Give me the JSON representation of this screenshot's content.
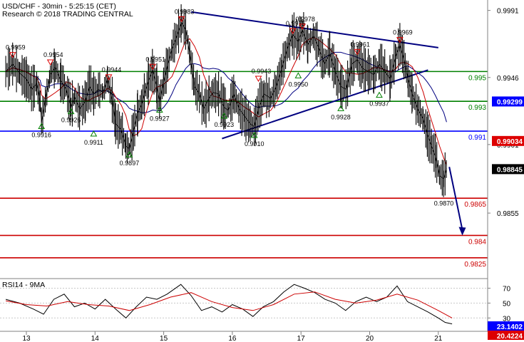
{
  "header": {
    "title": "USD/CHF - 30min - 5:25:15 (CET)",
    "subtitle": "Research © 2018 TRADING CENTRAL"
  },
  "chart_data": [
    {
      "type": "line",
      "name": "price-panel",
      "ylim": [
        0.9812,
        0.9998
      ],
      "y_ticks": [
        {
          "value": 0.9991,
          "label": "0.9991"
        },
        {
          "value": 0.9946,
          "label": "0.9946"
        },
        {
          "value": 0.9901,
          "label": "0.9901"
        },
        {
          "value": 0.9855,
          "label": "0.9855"
        }
      ],
      "x_ticks": [
        {
          "x": 0.0,
          "label": "13"
        },
        {
          "x": 1.0,
          "label": "14"
        },
        {
          "x": 2.0,
          "label": "15"
        },
        {
          "x": 3.0,
          "label": "16"
        },
        {
          "x": 4.0,
          "label": "17"
        },
        {
          "x": 5.0,
          "label": "20"
        },
        {
          "x": 6.0,
          "label": "21"
        }
      ],
      "price_path": [
        [
          -0.3,
          0.995
        ],
        [
          -0.2,
          0.9955
        ],
        [
          -0.1,
          0.9949
        ],
        [
          0.0,
          0.9945
        ],
        [
          0.08,
          0.9938
        ],
        [
          0.15,
          0.9942
        ],
        [
          0.2,
          0.993
        ],
        [
          0.22,
          0.9916
        ],
        [
          0.28,
          0.9932
        ],
        [
          0.35,
          0.9948
        ],
        [
          0.42,
          0.9953
        ],
        [
          0.5,
          0.9944
        ],
        [
          0.58,
          0.9938
        ],
        [
          0.65,
          0.9926
        ],
        [
          0.7,
          0.9933
        ],
        [
          0.78,
          0.9925
        ],
        [
          0.86,
          0.993
        ],
        [
          0.92,
          0.994
        ],
        [
          0.98,
          0.9935
        ],
        [
          1.05,
          0.9938
        ],
        [
          1.12,
          0.9936
        ],
        [
          1.18,
          0.9945
        ],
        [
          1.25,
          0.9931
        ],
        [
          1.3,
          0.9915
        ],
        [
          1.38,
          0.9911
        ],
        [
          1.45,
          0.99
        ],
        [
          1.5,
          0.9898
        ],
        [
          1.56,
          0.991
        ],
        [
          1.62,
          0.9922
        ],
        [
          1.68,
          0.9928
        ],
        [
          1.72,
          0.9935
        ],
        [
          1.78,
          0.9944
        ],
        [
          1.84,
          0.9951
        ],
        [
          1.9,
          0.994
        ],
        [
          1.94,
          0.993
        ],
        [
          2.0,
          0.9943
        ],
        [
          2.06,
          0.9955
        ],
        [
          2.12,
          0.9965
        ],
        [
          2.18,
          0.9972
        ],
        [
          2.26,
          0.9983
        ],
        [
          2.32,
          0.9978
        ],
        [
          2.38,
          0.9962
        ],
        [
          2.45,
          0.994
        ],
        [
          2.52,
          0.9935
        ],
        [
          2.58,
          0.9925
        ],
        [
          2.66,
          0.9932
        ],
        [
          2.72,
          0.9936
        ],
        [
          2.8,
          0.9935
        ],
        [
          2.88,
          0.9926
        ],
        [
          2.94,
          0.9924
        ],
        [
          3.02,
          0.9935
        ],
        [
          3.1,
          0.9925
        ],
        [
          3.18,
          0.992
        ],
        [
          3.26,
          0.9915
        ],
        [
          3.32,
          0.9913
        ],
        [
          3.38,
          0.9925
        ],
        [
          3.46,
          0.9935
        ],
        [
          3.56,
          0.9932
        ],
        [
          3.64,
          0.994
        ],
        [
          3.72,
          0.9952
        ],
        [
          3.8,
          0.9965
        ],
        [
          3.88,
          0.9975
        ],
        [
          3.96,
          0.997
        ],
        [
          4.02,
          0.9978
        ],
        [
          4.1,
          0.9968
        ],
        [
          4.18,
          0.9974
        ],
        [
          4.26,
          0.9966
        ],
        [
          4.34,
          0.9955
        ],
        [
          4.42,
          0.9962
        ],
        [
          4.5,
          0.995
        ],
        [
          4.58,
          0.994
        ],
        [
          4.66,
          0.9938
        ],
        [
          4.74,
          0.9955
        ],
        [
          4.82,
          0.9958
        ],
        [
          4.9,
          0.9952
        ],
        [
          4.98,
          0.995
        ],
        [
          5.06,
          0.9948
        ],
        [
          5.14,
          0.9955
        ],
        [
          5.22,
          0.995
        ],
        [
          5.3,
          0.9945
        ],
        [
          5.38,
          0.996
        ],
        [
          5.44,
          0.9968
        ],
        [
          5.5,
          0.9958
        ],
        [
          5.56,
          0.9945
        ],
        [
          5.62,
          0.9935
        ],
        [
          5.7,
          0.9925
        ],
        [
          5.78,
          0.9918
        ],
        [
          5.84,
          0.9908
        ],
        [
          5.9,
          0.99
        ],
        [
          5.96,
          0.9893
        ],
        [
          6.02,
          0.988
        ],
        [
          6.08,
          0.9878
        ],
        [
          6.12,
          0.9885
        ]
      ],
      "forecast_arrow": [
        [
          6.16,
          0.9886
        ],
        [
          6.35,
          0.984
        ]
      ],
      "horizontal_levels": [
        {
          "value": 0.995,
          "label": "0.995",
          "color": "#008000"
        },
        {
          "value": 0.993,
          "label": "0.993",
          "color": "#008000"
        },
        {
          "value": 0.991,
          "label": "0.991",
          "color": "#0000ff"
        },
        {
          "value": 0.9865,
          "label": "0.9865",
          "color": "#cc0000"
        },
        {
          "value": 0.984,
          "label": "0.984",
          "color": "#cc0000"
        },
        {
          "value": 0.9825,
          "label": "0.9825",
          "color": "#cc0000"
        }
      ],
      "trendlines": [
        {
          "from": [
            2.4,
            0.999
          ],
          "to": [
            6.0,
            0.9966
          ],
          "color": "#000080"
        },
        {
          "from": [
            2.85,
            0.9905
          ],
          "to": [
            5.85,
            0.9951
          ],
          "color": "#000080"
        }
      ],
      "price_badges": [
        {
          "value": 0.99299,
          "label": "0.99299",
          "bg": "#0000ff",
          "fg": "#ffffff"
        },
        {
          "value": 0.99034,
          "label": "0.99034",
          "bg": "#dd0000",
          "fg": "#ffffff"
        },
        {
          "value": 0.98845,
          "label": "0.98845",
          "bg": "#000000",
          "fg": "#ffffff"
        }
      ],
      "swing_highs": [
        {
          "x": -0.2,
          "value": 0.9959,
          "label": "0.9959"
        },
        {
          "x": 0.35,
          "value": 0.9954,
          "label": "0.9954"
        },
        {
          "x": 1.2,
          "value": 0.9944,
          "label": "0.9944"
        },
        {
          "x": 1.84,
          "value": 0.9951,
          "label": "0.9951"
        },
        {
          "x": 2.26,
          "value": 0.9983,
          "label": "0.9983"
        },
        {
          "x": 3.38,
          "value": 0.9943,
          "label": "0.9943"
        },
        {
          "x": 3.88,
          "value": 0.9975,
          "label": "0.9975"
        },
        {
          "x": 4.02,
          "value": 0.9978,
          "label": "0.9978"
        },
        {
          "x": 4.82,
          "value": 0.9961,
          "label": "0.9961"
        },
        {
          "x": 5.44,
          "value": 0.9969,
          "label": "0.9969"
        }
      ],
      "swing_lows": [
        {
          "x": 0.22,
          "value": 0.9916,
          "label": "0.9916"
        },
        {
          "x": 0.65,
          "value": 0.9926,
          "label": "0.9926"
        },
        {
          "x": 0.98,
          "value": 0.9911,
          "label": "0.9911"
        },
        {
          "x": 1.5,
          "value": 0.9897,
          "label": "0.9897"
        },
        {
          "x": 1.94,
          "value": 0.9927,
          "label": "0.9927"
        },
        {
          "x": 2.88,
          "value": 0.9923,
          "label": "0.9923"
        },
        {
          "x": 3.32,
          "value": 0.991,
          "label": "0.9910"
        },
        {
          "x": 3.96,
          "value": 0.995,
          "label": "0.9950"
        },
        {
          "x": 4.58,
          "value": 0.9928,
          "label": "0.9928"
        },
        {
          "x": 5.14,
          "value": 0.9937,
          "label": "0.9937"
        },
        {
          "x": 6.08,
          "value": 0.987,
          "label": "0.9870"
        }
      ],
      "colors": {
        "price": "#000000",
        "ma_fast": "#cc0000",
        "ma_slow": "#000080"
      }
    },
    {
      "type": "line",
      "name": "rsi-panel",
      "title": "RSI14 - 9MA",
      "ylim": [
        14,
        80
      ],
      "y_ticks": [
        {
          "value": 70,
          "label": "70"
        },
        {
          "value": 50,
          "label": "50"
        },
        {
          "value": 30,
          "label": "30"
        }
      ],
      "series": [
        {
          "color": "#000000",
          "points": [
            [
              -0.3,
              55
            ],
            [
              -0.1,
              50
            ],
            [
              0.1,
              42
            ],
            [
              0.25,
              35
            ],
            [
              0.4,
              55
            ],
            [
              0.55,
              62
            ],
            [
              0.7,
              45
            ],
            [
              0.85,
              50
            ],
            [
              1.0,
              42
            ],
            [
              1.15,
              55
            ],
            [
              1.3,
              42
            ],
            [
              1.45,
              30
            ],
            [
              1.6,
              45
            ],
            [
              1.75,
              58
            ],
            [
              1.9,
              55
            ],
            [
              2.05,
              62
            ],
            [
              2.25,
              75
            ],
            [
              2.4,
              60
            ],
            [
              2.55,
              40
            ],
            [
              2.7,
              45
            ],
            [
              2.85,
              38
            ],
            [
              3.0,
              48
            ],
            [
              3.15,
              42
            ],
            [
              3.3,
              32
            ],
            [
              3.45,
              45
            ],
            [
              3.6,
              52
            ],
            [
              3.75,
              65
            ],
            [
              3.9,
              75
            ],
            [
              4.05,
              70
            ],
            [
              4.2,
              64
            ],
            [
              4.35,
              55
            ],
            [
              4.5,
              50
            ],
            [
              4.65,
              40
            ],
            [
              4.8,
              52
            ],
            [
              4.95,
              58
            ],
            [
              5.1,
              52
            ],
            [
              5.25,
              58
            ],
            [
              5.4,
              73
            ],
            [
              5.55,
              52
            ],
            [
              5.7,
              45
            ],
            [
              5.85,
              38
            ],
            [
              6.0,
              30
            ],
            [
              6.1,
              24
            ],
            [
              6.2,
              22
            ]
          ]
        },
        {
          "color": "#cc0000",
          "points": [
            [
              -0.3,
              53
            ],
            [
              0.0,
              48
            ],
            [
              0.3,
              46
            ],
            [
              0.6,
              52
            ],
            [
              0.9,
              48
            ],
            [
              1.2,
              46
            ],
            [
              1.5,
              40
            ],
            [
              1.8,
              48
            ],
            [
              2.1,
              58
            ],
            [
              2.4,
              64
            ],
            [
              2.7,
              52
            ],
            [
              3.0,
              44
            ],
            [
              3.3,
              40
            ],
            [
              3.6,
              48
            ],
            [
              3.9,
              62
            ],
            [
              4.2,
              65
            ],
            [
              4.5,
              55
            ],
            [
              4.8,
              50
            ],
            [
              5.1,
              54
            ],
            [
              5.4,
              62
            ],
            [
              5.7,
              54
            ],
            [
              6.0,
              40
            ],
            [
              6.2,
              30
            ]
          ]
        }
      ],
      "value_badges": [
        {
          "value": 23.1402,
          "label": "23.1402",
          "bg": "#0000ff",
          "fg": "#ffffff"
        },
        {
          "value": 20.4224,
          "label": "20.4224",
          "bg": "#dd0000",
          "fg": "#ffffff"
        }
      ]
    }
  ]
}
